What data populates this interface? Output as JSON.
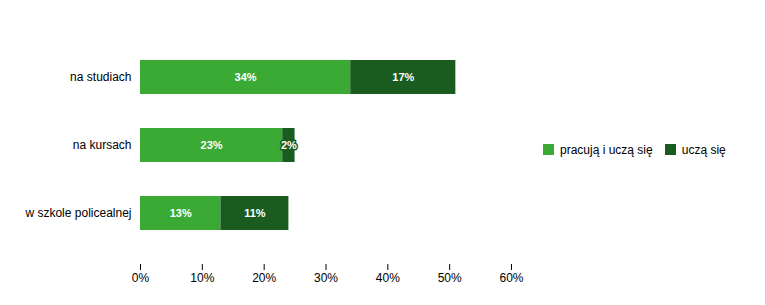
{
  "chart_data": {
    "type": "bar",
    "orientation": "horizontal",
    "stacked": true,
    "data_labels": true,
    "grid": false,
    "legend": "right",
    "categories": [
      "w szkole policealnej",
      "na kursach",
      "na studiach"
    ],
    "series": [
      {
        "name": "pracują i uczą się",
        "color": "#3aaa35",
        "values": [
          13,
          23,
          34
        ],
        "value_labels": [
          "13%",
          "23%",
          "34%"
        ]
      },
      {
        "name": "uczą się",
        "color": "#1a5c20",
        "values": [
          11,
          2,
          17
        ],
        "value_labels": [
          "11%",
          "2%",
          "17%"
        ]
      }
    ],
    "xlim": [
      0,
      60
    ],
    "xticks": [
      {
        "value": 0,
        "label": "0%"
      },
      {
        "value": 10,
        "label": "10%"
      },
      {
        "value": 20,
        "label": "20%"
      },
      {
        "value": 30,
        "label": "30%"
      },
      {
        "value": 40,
        "label": "40%"
      },
      {
        "value": 50,
        "label": "50%"
      },
      {
        "value": 60,
        "label": "60%"
      }
    ]
  }
}
